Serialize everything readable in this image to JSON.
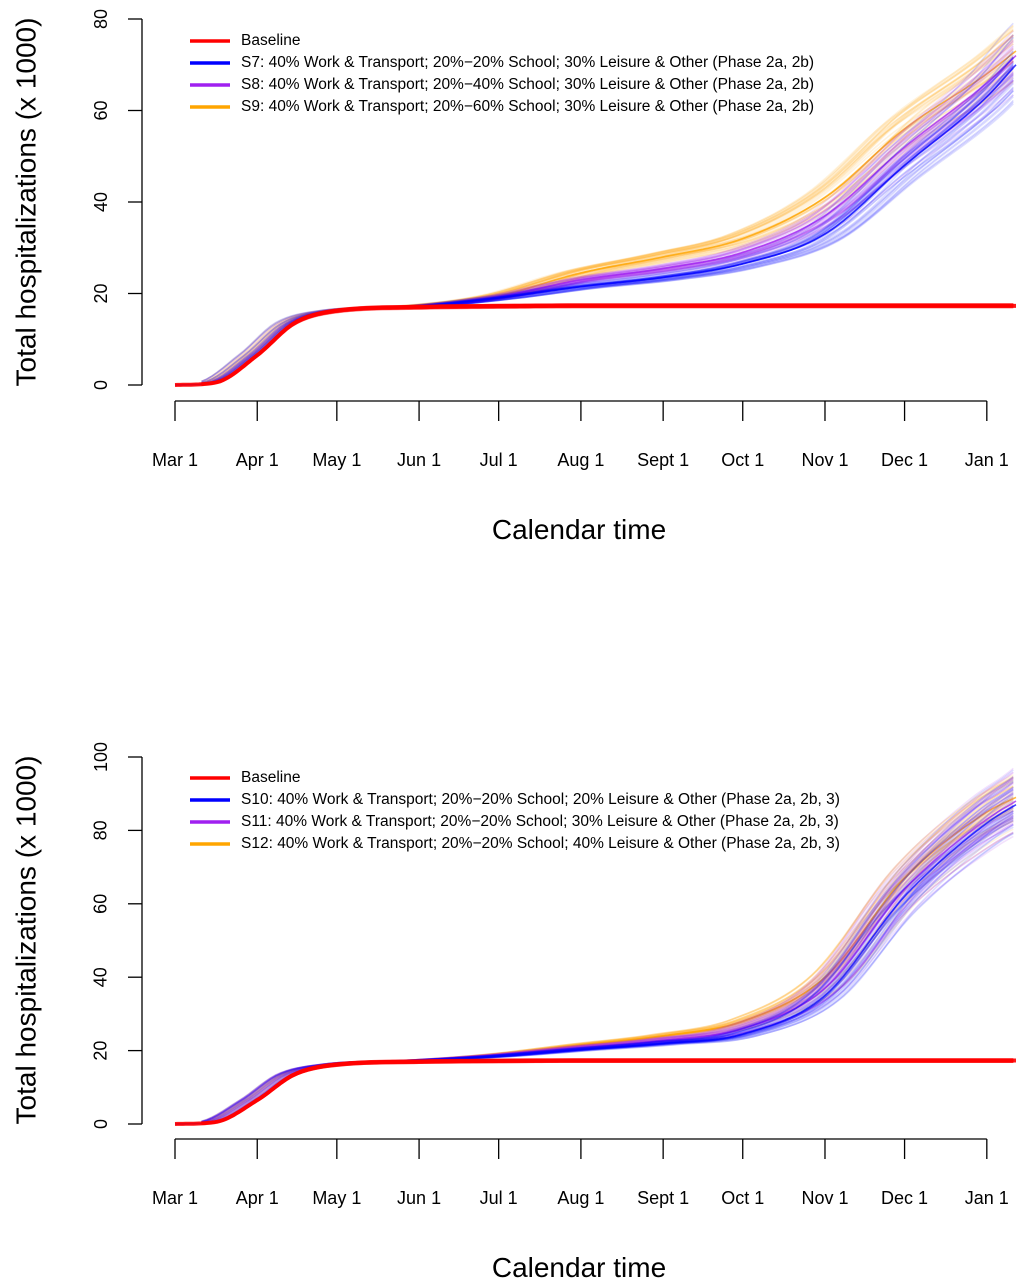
{
  "chart_data": [
    {
      "type": "line",
      "xlabel": "Calendar time",
      "ylabel": "Total hospitalizations (x 1000)",
      "ylim": [
        0,
        80
      ],
      "yticks": [
        0,
        20,
        40,
        60,
        80
      ],
      "x_ticks": [
        {
          "label": "Mar 1",
          "day": 0
        },
        {
          "label": "Apr 1",
          "day": 31
        },
        {
          "label": "May 1",
          "day": 61
        },
        {
          "label": "Jun 1",
          "day": 92
        },
        {
          "label": "Jul 1",
          "day": 122
        },
        {
          "label": "Aug 1",
          "day": 153
        },
        {
          "label": "Sept 1",
          "day": 184
        },
        {
          "label": "Oct 1",
          "day": 214
        },
        {
          "label": "Nov 1",
          "day": 245
        },
        {
          "label": "Dec 1",
          "day": 275
        },
        {
          "label": "Jan 1",
          "day": 306
        }
      ],
      "xlim_days": [
        0,
        317
      ],
      "legend_position": "top-left",
      "series": [
        {
          "name": "Baseline",
          "color": "#ff0000",
          "x": [
            0,
            15,
            31,
            45,
            61,
            92,
            122,
            153,
            184,
            214,
            245,
            275,
            306,
            317
          ],
          "y": [
            0,
            0.5,
            6.5,
            13.5,
            16.2,
            17,
            17.2,
            17.3,
            17.3,
            17.3,
            17.3,
            17.3,
            17.3,
            17.3
          ]
        },
        {
          "name": "S7: 40% Work & Transport; 20%−20% School; 30% Leisure & Other (Phase 2a, 2b)",
          "color": "#0000ff",
          "x": [
            0,
            15,
            31,
            45,
            61,
            92,
            122,
            153,
            184,
            214,
            245,
            275,
            306,
            317
          ],
          "y": [
            0,
            0.5,
            6.5,
            13.5,
            16.2,
            17.2,
            19,
            21.5,
            23.5,
            26.5,
            33,
            48,
            63,
            70
          ]
        },
        {
          "name": "S8: 40% Work & Transport; 20%−40% School; 30% Leisure & Other (Phase 2a, 2b)",
          "color": "#a020f0",
          "x": [
            0,
            15,
            31,
            45,
            61,
            92,
            122,
            153,
            184,
            214,
            245,
            275,
            306,
            317
          ],
          "y": [
            0,
            0.5,
            6.5,
            13.5,
            16.2,
            17.2,
            19.3,
            23,
            25.5,
            29,
            37,
            52,
            66,
            72
          ]
        },
        {
          "name": "S9: 40% Work & Transport; 20%−60% School; 30% Leisure & Other (Phase 2a, 2b)",
          "color": "#ffa500",
          "x": [
            0,
            15,
            31,
            45,
            61,
            92,
            122,
            153,
            184,
            214,
            245,
            275,
            306,
            317
          ],
          "y": [
            0,
            0.5,
            6.5,
            13.5,
            16.2,
            17.3,
            19.5,
            24.5,
            28,
            32,
            41,
            56,
            68,
            73
          ]
        }
      ]
    },
    {
      "type": "line",
      "xlabel": "Calendar time",
      "ylabel": "Total hospitalizations (x 1000)",
      "ylim": [
        0,
        100
      ],
      "yticks": [
        0,
        20,
        40,
        60,
        80,
        100
      ],
      "x_ticks": [
        {
          "label": "Mar 1",
          "day": 0
        },
        {
          "label": "Apr 1",
          "day": 31
        },
        {
          "label": "May 1",
          "day": 61
        },
        {
          "label": "Jun 1",
          "day": 92
        },
        {
          "label": "Jul 1",
          "day": 122
        },
        {
          "label": "Aug 1",
          "day": 153
        },
        {
          "label": "Sept 1",
          "day": 184
        },
        {
          "label": "Oct 1",
          "day": 214
        },
        {
          "label": "Nov 1",
          "day": 245
        },
        {
          "label": "Dec 1",
          "day": 275
        },
        {
          "label": "Jan 1",
          "day": 306
        }
      ],
      "xlim_days": [
        0,
        317
      ],
      "legend_position": "top-left",
      "series": [
        {
          "name": "Baseline",
          "color": "#ff0000",
          "x": [
            0,
            15,
            31,
            45,
            61,
            92,
            122,
            153,
            184,
            214,
            245,
            275,
            306,
            317
          ],
          "y": [
            0,
            0.5,
            6.5,
            13.5,
            16.2,
            17,
            17.2,
            17.3,
            17.3,
            17.3,
            17.3,
            17.3,
            17.3,
            17.3
          ]
        },
        {
          "name": "S10: 40% Work & Transport; 20%−20% School; 20% Leisure & Other (Phase 2a, 2b, 3)",
          "color": "#0000ff",
          "x": [
            0,
            15,
            31,
            45,
            61,
            92,
            122,
            153,
            184,
            214,
            245,
            275,
            306,
            317
          ],
          "y": [
            0,
            0.5,
            6.5,
            13.5,
            16.2,
            17.3,
            18.5,
            20.3,
            22,
            24.5,
            35,
            62,
            82,
            87
          ]
        },
        {
          "name": "S11: 40% Work & Transport; 20%−20% School; 30% Leisure & Other (Phase 2a, 2b, 3)",
          "color": "#a020f0",
          "x": [
            0,
            15,
            31,
            45,
            61,
            92,
            122,
            153,
            184,
            214,
            245,
            275,
            306,
            317
          ],
          "y": [
            0,
            0.5,
            6.5,
            13.5,
            16.2,
            17.3,
            18.7,
            20.8,
            22.8,
            26,
            37,
            64,
            83,
            88
          ]
        },
        {
          "name": "S12: 40% Work & Transport; 20%−20% School; 40% Leisure & Other (Phase 2a, 2b, 3)",
          "color": "#ffa500",
          "x": [
            0,
            15,
            31,
            45,
            61,
            92,
            122,
            153,
            184,
            214,
            245,
            275,
            306,
            317
          ],
          "y": [
            0,
            0.5,
            6.5,
            13.5,
            16.2,
            17.3,
            18.9,
            21.5,
            24,
            28,
            40,
            67,
            85,
            89
          ]
        }
      ]
    }
  ]
}
